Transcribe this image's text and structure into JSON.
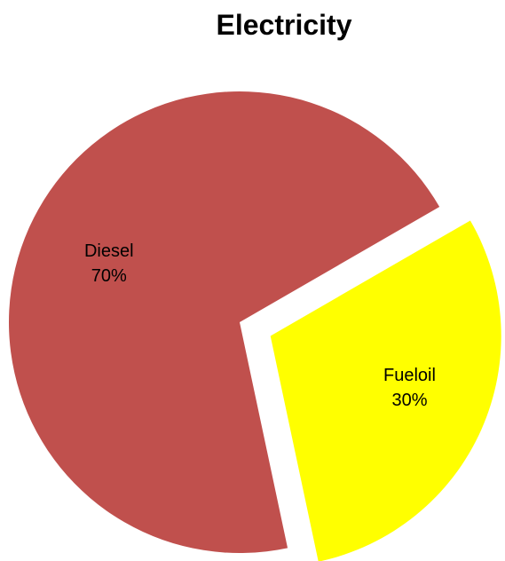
{
  "chart_data": {
    "type": "pie",
    "title": "Electricity",
    "slices": [
      {
        "label": "Diesel",
        "value": 70,
        "value_label": "70%",
        "color": "#C0504D",
        "exploded": false
      },
      {
        "label": "Fueloil",
        "value": 30,
        "value_label": "30%",
        "color": "#FFFF00",
        "exploded": true
      }
    ],
    "legend": "none",
    "data_labels": "inside"
  }
}
